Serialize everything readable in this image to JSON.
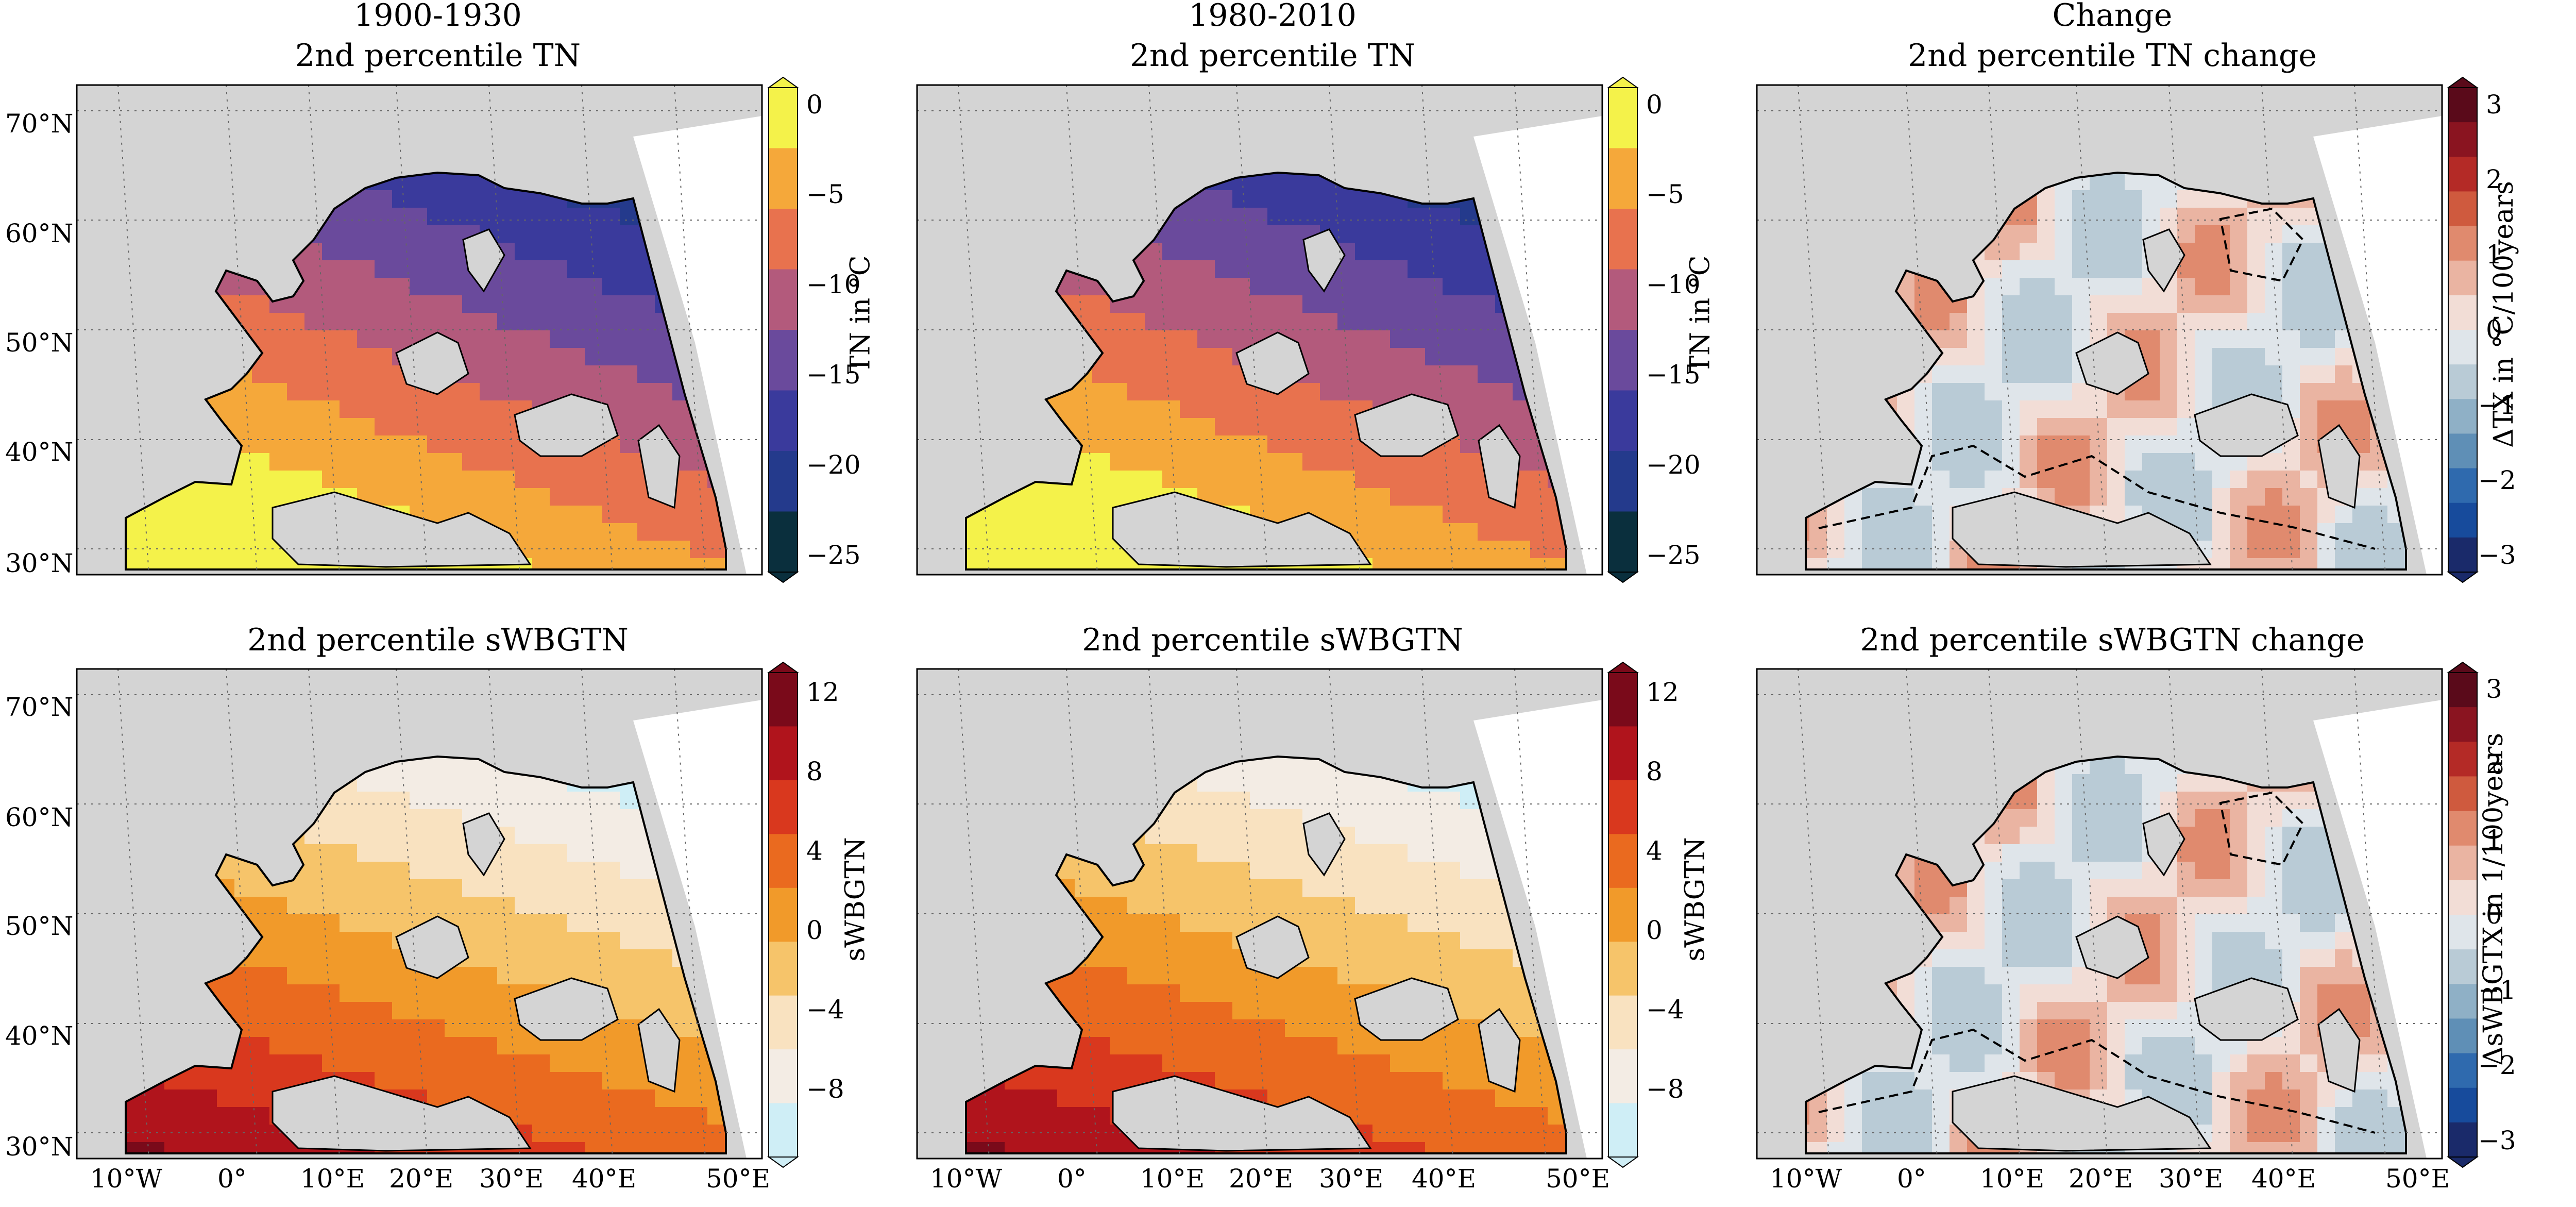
{
  "columns": {
    "col1": "1900-1930",
    "col2": "1980-2010",
    "col3": "Change"
  },
  "panels": {
    "p1": {
      "title": "2nd percentile TN"
    },
    "p2": {
      "title": "2nd percentile TN"
    },
    "p3": {
      "title": "2nd percentile TN change"
    },
    "p4": {
      "title": "2nd percentile sWBGTN"
    },
    "p5": {
      "title": "2nd percentile sWBGTN"
    },
    "p6": {
      "title": "2nd percentile sWBGTN change"
    }
  },
  "axes": {
    "lat_ticks": [
      "70°N",
      "60°N",
      "50°N",
      "40°N",
      "30°N"
    ],
    "lon_ticks": [
      "10°W",
      "0°",
      "10°E",
      "20°E",
      "30°E",
      "40°E",
      "50°E"
    ]
  },
  "colorbars": {
    "tn": {
      "label": "TN in °C",
      "ticks": [
        "0",
        "−5",
        "−10",
        "−15",
        "−20",
        "−25"
      ],
      "colors": [
        "#f4f24a",
        "#f5a83a",
        "#e8724e",
        "#b35a7c",
        "#6a4a9c",
        "#3a3a9c",
        "#243a8c",
        "#0a2f3d"
      ]
    },
    "swbgtn": {
      "label": "sWBGTN",
      "ticks": [
        "12",
        "8",
        "4",
        "0",
        "−4",
        "−8"
      ],
      "colors": [
        "#7a0a1a",
        "#b0141c",
        "#d9381e",
        "#ea6a1f",
        "#f19a2a",
        "#f6c46a",
        "#f9e2c0",
        "#f3ece4",
        "#cfeef6"
      ]
    },
    "change": {
      "label_tn": "ΔTX in °C/100years",
      "label_swbgt": "ΔsWBGTX in 1/100years",
      "ticks": [
        "3",
        "2",
        "1",
        "0",
        "−1",
        "−2",
        "−3"
      ],
      "colors": [
        "#5a0a1a",
        "#8a1420",
        "#b42a26",
        "#cf5a3e",
        "#e08a6e",
        "#eab4a2",
        "#f2ddd6",
        "#dfe5ea",
        "#b9cbd6",
        "#8fb0c6",
        "#5f8fb6",
        "#2f6aae",
        "#174b9c",
        "#1a2a6a"
      ]
    }
  },
  "map_colors": {
    "ocean": "#d4d4d4",
    "outside": "#ffffff"
  }
}
